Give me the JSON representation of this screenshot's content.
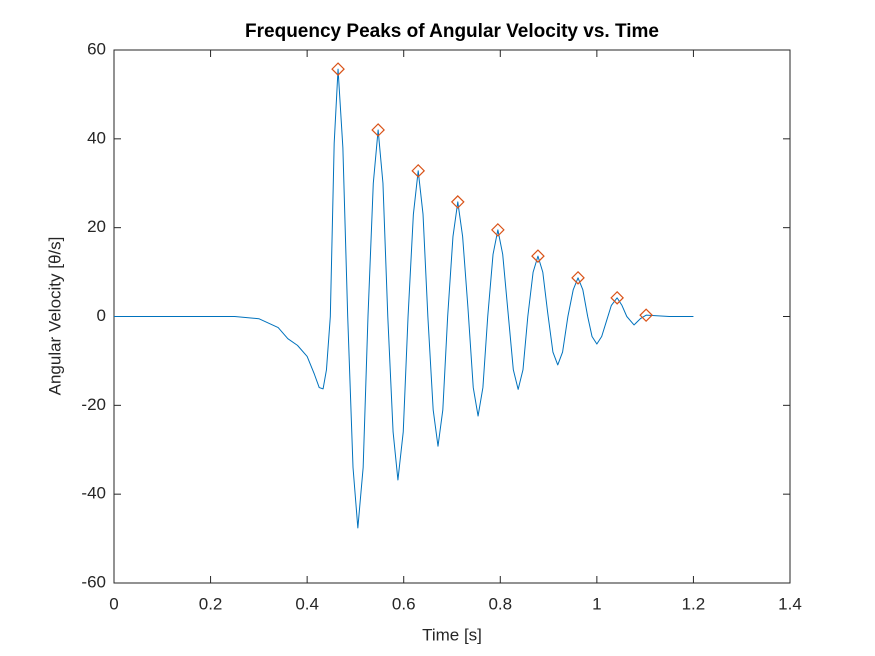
{
  "chart_data": {
    "type": "line",
    "title": "Frequency Peaks of Angular Velocity vs. Time",
    "x_label": "Time [s]",
    "y_label": "Angular Velocity [θ/s]",
    "xlim": [
      0,
      1.4
    ],
    "xticks": [
      0,
      0.2,
      0.4,
      0.6,
      0.8,
      1,
      1.2,
      1.4
    ],
    "ylim": [
      -60,
      60
    ],
    "yticks": [
      -60,
      -40,
      -20,
      0,
      20,
      40,
      60
    ],
    "grid": false,
    "series": [
      {
        "color": "#0072BD",
        "x": [
          0,
          0.1,
          0.2,
          0.25,
          0.3,
          0.34,
          0.36,
          0.38,
          0.4,
          0.415,
          0.425,
          0.433,
          0.44,
          0.448,
          0.456,
          0.464,
          0.474,
          0.484,
          0.495,
          0.505,
          0.516,
          0.526,
          0.537,
          0.547,
          0.557,
          0.567,
          0.578,
          0.588,
          0.599,
          0.609,
          0.62,
          0.63,
          0.64,
          0.65,
          0.661,
          0.671,
          0.681,
          0.691,
          0.702,
          0.712,
          0.722,
          0.733,
          0.744,
          0.754,
          0.764,
          0.774,
          0.785,
          0.795,
          0.805,
          0.816,
          0.827,
          0.837,
          0.847,
          0.857,
          0.868,
          0.878,
          0.888,
          0.898,
          0.909,
          0.919,
          0.929,
          0.94,
          0.951,
          0.961,
          0.971,
          0.981,
          0.99,
          1.0,
          1.01,
          1.02,
          1.03,
          1.042,
          1.052,
          1.062,
          1.077,
          1.09,
          1.102,
          1.15,
          1.2
        ],
        "values": [
          0,
          0,
          0,
          0,
          -0.5,
          -2.5,
          -5,
          -6.5,
          -9,
          -13,
          -16,
          -16.3,
          -12,
          0,
          39,
          55.7,
          38,
          0,
          -34,
          -47.6,
          -34,
          0,
          30,
          42.0,
          30,
          0,
          -26,
          -36.8,
          -26,
          0,
          23,
          32.8,
          23,
          0,
          -21,
          -29.2,
          -21,
          0,
          18,
          25.8,
          18,
          2,
          -16,
          -22.4,
          -16,
          0,
          14,
          19.5,
          14,
          1,
          -12,
          -16.4,
          -12,
          0,
          10,
          13.6,
          10,
          1,
          -8,
          -10.9,
          -8,
          0,
          6,
          8.7,
          6,
          0,
          -4.5,
          -6.2,
          -4.5,
          -1,
          2.5,
          4.2,
          2.5,
          0,
          -1.9,
          -0.5,
          0.3,
          0,
          0
        ]
      },
      {
        "color": "#D95319",
        "marker": "diamond",
        "x": [
          0.464,
          0.547,
          0.63,
          0.712,
          0.795,
          0.878,
          0.961,
          1.042,
          1.102
        ],
        "values": [
          55.7,
          42.0,
          32.8,
          25.8,
          19.5,
          13.6,
          8.7,
          4.2,
          0.3
        ]
      }
    ]
  }
}
